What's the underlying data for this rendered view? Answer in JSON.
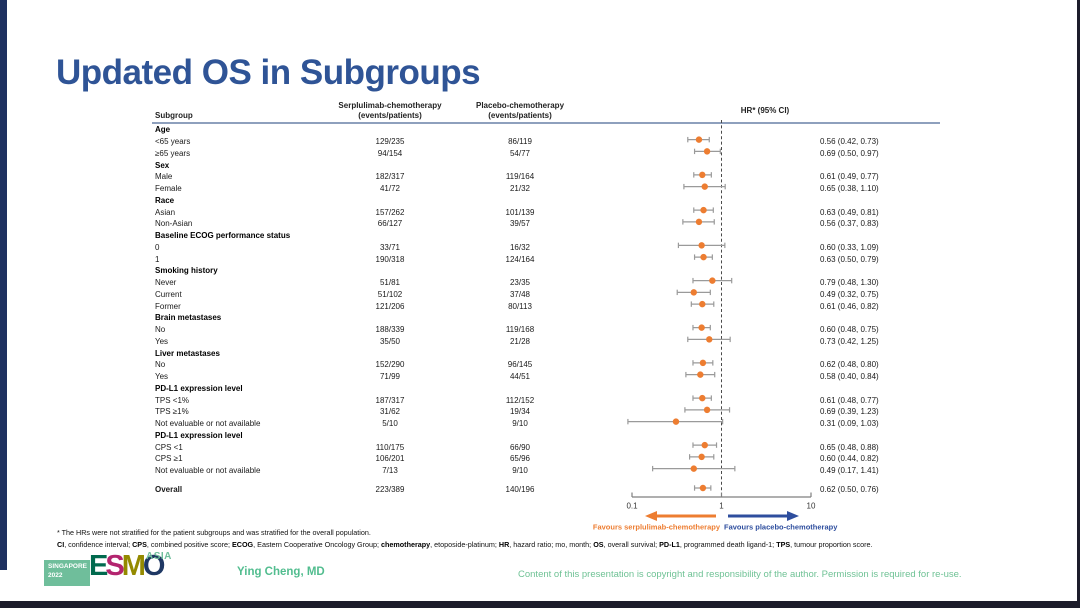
{
  "title": "Updated OS in Subgroups",
  "colors": {
    "title": "#2f5496",
    "accent_bar": "#1e3160",
    "marker": "#ed7d31",
    "arrow_left": "#ed7d31",
    "arrow_right": "#2e4e9e",
    "whisker": "#9a9a9a",
    "header_line": "#8ea0bd",
    "green_text": "#6fc295"
  },
  "table": {
    "header": {
      "subgroup": "Subgroup",
      "serplulimab_line1": "Serplulimab-chemotherapy",
      "serplulimab_line2": "(events/patients)",
      "placebo_line1": "Placebo-chemotherapy",
      "placebo_line2": "(events/patients)",
      "hr": "HR* (95% CI)"
    }
  },
  "chart_data": {
    "type": "forest",
    "x_axis": {
      "scale": "log",
      "ticks": [
        "0.1",
        "1",
        "10"
      ],
      "range": [
        0.1,
        10
      ],
      "ref_line": 1
    },
    "favours_left": "Favours serplulimab-chemotherapy",
    "favours_right": "Favours placebo-chemotherapy",
    "rows": [
      {
        "group": "Age"
      },
      {
        "label": "<65 years",
        "serp": "129/235",
        "pbo": "86/119",
        "hr": 0.56,
        "lo": 0.42,
        "hi": 0.73,
        "hr_text": "0.56 (0.42, 0.73)"
      },
      {
        "label": "≥65 years",
        "serp": "94/154",
        "pbo": "54/77",
        "hr": 0.69,
        "lo": 0.5,
        "hi": 0.97,
        "hr_text": "0.69 (0.50, 0.97)"
      },
      {
        "group": "Sex"
      },
      {
        "label": "Male",
        "serp": "182/317",
        "pbo": "119/164",
        "hr": 0.61,
        "lo": 0.49,
        "hi": 0.77,
        "hr_text": "0.61 (0.49, 0.77)"
      },
      {
        "label": "Female",
        "serp": "41/72",
        "pbo": "21/32",
        "hr": 0.65,
        "lo": 0.38,
        "hi": 1.1,
        "hr_text": "0.65 (0.38, 1.10)"
      },
      {
        "group": "Race"
      },
      {
        "label": "Asian",
        "serp": "157/262",
        "pbo": "101/139",
        "hr": 0.63,
        "lo": 0.49,
        "hi": 0.81,
        "hr_text": "0.63 (0.49, 0.81)"
      },
      {
        "label": "Non-Asian",
        "serp": "66/127",
        "pbo": "39/57",
        "hr": 0.56,
        "lo": 0.37,
        "hi": 0.83,
        "hr_text": "0.56 (0.37, 0.83)"
      },
      {
        "group": "Baseline ECOG performance status"
      },
      {
        "label": "0",
        "serp": "33/71",
        "pbo": "16/32",
        "hr": 0.6,
        "lo": 0.33,
        "hi": 1.09,
        "hr_text": "0.60 (0.33, 1.09)"
      },
      {
        "label": "1",
        "serp": "190/318",
        "pbo": "124/164",
        "hr": 0.63,
        "lo": 0.5,
        "hi": 0.79,
        "hr_text": "0.63 (0.50, 0.79)"
      },
      {
        "group": "Smoking history"
      },
      {
        "label": "Never",
        "serp": "51/81",
        "pbo": "23/35",
        "hr": 0.79,
        "lo": 0.48,
        "hi": 1.3,
        "hr_text": "0.79 (0.48, 1.30)"
      },
      {
        "label": "Current",
        "serp": "51/102",
        "pbo": "37/48",
        "hr": 0.49,
        "lo": 0.32,
        "hi": 0.75,
        "hr_text": "0.49 (0.32, 0.75)"
      },
      {
        "label": "Former",
        "serp": "121/206",
        "pbo": "80/113",
        "hr": 0.61,
        "lo": 0.46,
        "hi": 0.82,
        "hr_text": "0.61 (0.46, 0.82)"
      },
      {
        "group": "Brain metastases"
      },
      {
        "label": "No",
        "serp": "188/339",
        "pbo": "119/168",
        "hr": 0.6,
        "lo": 0.48,
        "hi": 0.75,
        "hr_text": "0.60 (0.48, 0.75)"
      },
      {
        "label": "Yes",
        "serp": "35/50",
        "pbo": "21/28",
        "hr": 0.73,
        "lo": 0.42,
        "hi": 1.25,
        "hr_text": "0.73 (0.42, 1.25)"
      },
      {
        "group": "Liver metastases"
      },
      {
        "label": "No",
        "serp": "152/290",
        "pbo": "96/145",
        "hr": 0.62,
        "lo": 0.48,
        "hi": 0.8,
        "hr_text": "0.62 (0.48, 0.80)"
      },
      {
        "label": "Yes",
        "serp": "71/99",
        "pbo": "44/51",
        "hr": 0.58,
        "lo": 0.4,
        "hi": 0.84,
        "hr_text": "0.58 (0.40, 0.84)"
      },
      {
        "group": "PD-L1 expression level"
      },
      {
        "label": "TPS <1%",
        "serp": "187/317",
        "pbo": "112/152",
        "hr": 0.61,
        "lo": 0.48,
        "hi": 0.77,
        "hr_text": "0.61 (0.48, 0.77)"
      },
      {
        "label": "TPS ≥1%",
        "serp": "31/62",
        "pbo": "19/34",
        "hr": 0.69,
        "lo": 0.39,
        "hi": 1.23,
        "hr_text": "0.69 (0.39, 1.23)"
      },
      {
        "label": "Not evaluable or not available",
        "serp": "5/10",
        "pbo": "9/10",
        "hr": 0.31,
        "lo": 0.09,
        "hi": 1.03,
        "hr_text": "0.31 (0.09, 1.03)"
      },
      {
        "group": "PD-L1 expression level"
      },
      {
        "label": "CPS <1",
        "serp": "110/175",
        "pbo": "66/90",
        "hr": 0.65,
        "lo": 0.48,
        "hi": 0.88,
        "hr_text": "0.65 (0.48, 0.88)"
      },
      {
        "label": "CPS ≥1",
        "serp": "106/201",
        "pbo": "65/96",
        "hr": 0.6,
        "lo": 0.44,
        "hi": 0.82,
        "hr_text": "0.60 (0.44, 0.82)"
      },
      {
        "label": "Not evaluable or not available",
        "serp": "7/13",
        "pbo": "9/10",
        "hr": 0.49,
        "lo": 0.17,
        "hi": 1.41,
        "hr_text": "0.49 (0.17, 1.41)"
      }
    ],
    "overall": {
      "label": "Overall",
      "serp": "223/389",
      "pbo": "140/196",
      "hr": 0.62,
      "lo": 0.5,
      "hi": 0.76,
      "hr_text": "0.62 (0.50, 0.76)"
    }
  },
  "footnotes": {
    "line1": "* The HRs were not stratified for the patient subgroups and was stratified for the overall population.",
    "line2_segments": [
      {
        "b": "CI"
      },
      {
        "t": ", confidence interval; "
      },
      {
        "b": "CPS"
      },
      {
        "t": ", combined positive score; "
      },
      {
        "b": "ECOG"
      },
      {
        "t": ", Eastern Cooperative Oncology Group; "
      },
      {
        "b": "chemotherapy"
      },
      {
        "t": ", etoposide-platinum; "
      },
      {
        "b": "HR"
      },
      {
        "t": ", hazard ratio; mo, month; "
      },
      {
        "b": "OS"
      },
      {
        "t": ", overall survival; "
      },
      {
        "b": "PD-L1"
      },
      {
        "t": ", programmed death ligand-1; "
      },
      {
        "b": "TPS"
      },
      {
        "t": ", tumour proportion score."
      }
    ]
  },
  "footer": {
    "event_box_line1": "SINGAPORE",
    "event_box_line2": "2022",
    "esmo_letters": [
      {
        "ch": "E",
        "color": "#006a4e"
      },
      {
        "ch": "S",
        "color": "#b3246f"
      },
      {
        "ch": "M",
        "color": "#948a00"
      },
      {
        "ch": "O",
        "color": "#1f3864"
      }
    ],
    "asia": "ASIA",
    "author": "Ying Cheng, MD",
    "copyright": "Content of this presentation is copyright and responsibility of the author. Permission is required for re-use."
  }
}
